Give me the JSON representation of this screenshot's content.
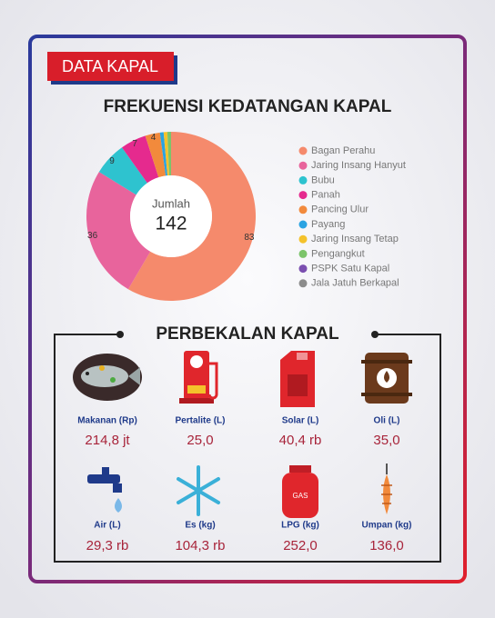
{
  "badge": "DATA KAPAL",
  "chart_data": {
    "type": "donut",
    "title": "FREKUENSI KEDATANGAN KAPAL",
    "center_label": "Jumlah",
    "total": 142,
    "categories": [
      "Bagan Perahu",
      "Jaring Insang Hanyut",
      "Bubu",
      "Panah",
      "Pancing Ulur",
      "Payang",
      "Jaring Insang Tetap",
      "Pengangkut",
      "PSPK Satu Kapal",
      "Jala Jatuh Berkapal"
    ],
    "values": [
      83,
      36,
      9,
      7,
      4,
      1,
      1,
      1,
      0,
      0
    ],
    "colors": [
      "#f58a6c",
      "#e8649c",
      "#2ec3cf",
      "#e52a8e",
      "#f28a3c",
      "#2aa3e2",
      "#f4c22b",
      "#7cc46a",
      "#7b4fb0",
      "#8c8c8c"
    ]
  },
  "supplies": {
    "title": "PERBEKALAN KAPAL",
    "items": [
      {
        "label": "Makanan (Rp)",
        "value": "214,8 jt"
      },
      {
        "label": "Pertalite (L)",
        "value": "25,0"
      },
      {
        "label": "Solar (L)",
        "value": "40,4 rb"
      },
      {
        "label": "Oli (L)",
        "value": "35,0"
      },
      {
        "label": "Air (L)",
        "value": "29,3 rb"
      },
      {
        "label": "Es (kg)",
        "value": "104,3 rb"
      },
      {
        "label": "LPG (kg)",
        "value": "252,0"
      },
      {
        "label": "Umpan (kg)",
        "value": "136,0"
      }
    ]
  }
}
